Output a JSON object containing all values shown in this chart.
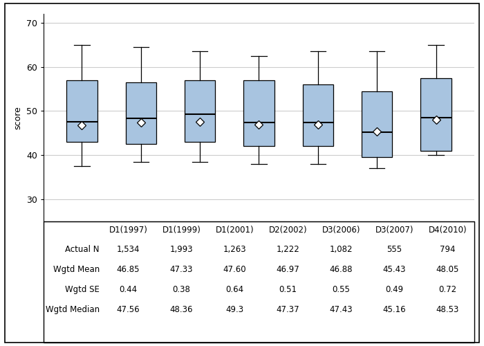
{
  "categories": [
    "D1(1997)",
    "D1(1999)",
    "D1(2001)",
    "D2(2002)",
    "D3(2006)",
    "D3(2007)",
    "D4(2010)"
  ],
  "wgtd_mean": [
    46.85,
    47.33,
    47.6,
    46.97,
    46.88,
    45.43,
    48.05
  ],
  "box_q1": [
    43.0,
    42.5,
    43.0,
    42.0,
    42.0,
    39.5,
    41.0
  ],
  "box_median": [
    47.56,
    48.36,
    49.3,
    47.37,
    47.43,
    45.16,
    48.53
  ],
  "box_q3": [
    57.0,
    56.5,
    57.0,
    57.0,
    56.0,
    54.5,
    57.5
  ],
  "box_whislo": [
    37.5,
    38.5,
    38.5,
    38.0,
    38.0,
    37.0,
    40.0
  ],
  "box_whishi": [
    65.0,
    64.5,
    63.5,
    62.5,
    63.5,
    63.5,
    65.0
  ],
  "box_color": "#a8c4e0",
  "box_edge_color": "#000000",
  "median_line_color": "#000000",
  "mean_marker_color": "#ffffff",
  "mean_marker_edge_color": "#000000",
  "ylabel": "score",
  "ylim": [
    25,
    72
  ],
  "yticks": [
    30,
    40,
    50,
    60,
    70
  ],
  "grid_color": "#cccccc",
  "background_color": "#ffffff",
  "table_row_labels": [
    "Actual N",
    "Wgtd Mean",
    "Wgtd SE",
    "Wgtd Median"
  ],
  "table_actual_n": [
    "1,534",
    "1,993",
    "1,263",
    "1,222",
    "1,082",
    "555",
    "794"
  ],
  "table_wgtd_mean": [
    "46.85",
    "47.33",
    "47.60",
    "46.97",
    "46.88",
    "45.43",
    "48.05"
  ],
  "table_wgtd_se": [
    "0.44",
    "0.38",
    "0.64",
    "0.51",
    "0.55",
    "0.49",
    "0.72"
  ],
  "table_wgtd_median": [
    "47.56",
    "48.36",
    "49.3",
    "47.37",
    "47.43",
    "45.16",
    "48.53"
  ]
}
